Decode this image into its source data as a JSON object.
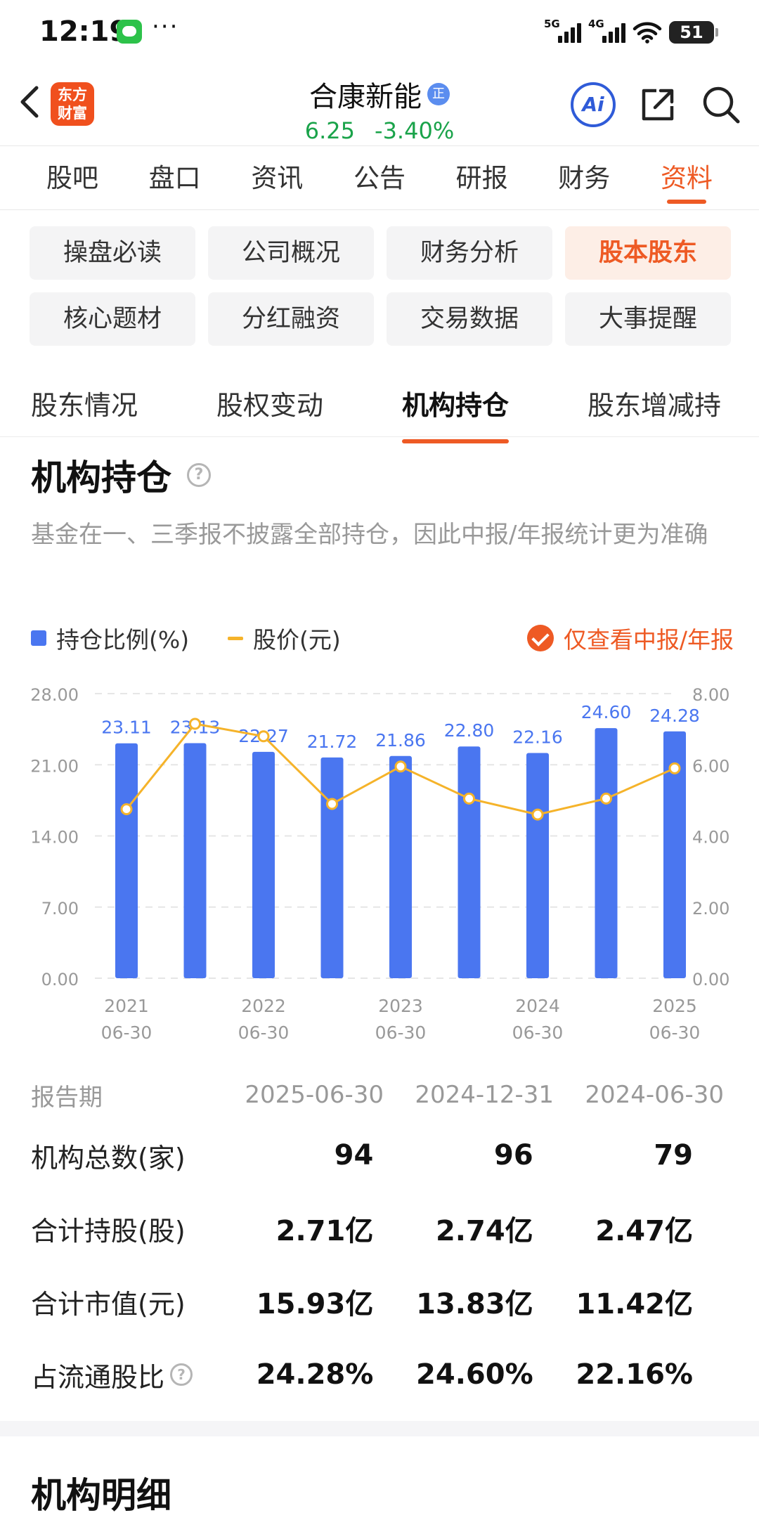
{
  "status_bar": {
    "time": "12:19",
    "dots": "···",
    "net1": "5G",
    "net2": "4G",
    "battery": "51"
  },
  "header": {
    "logo_line1": "东方",
    "logo_line2": "财富",
    "stock_name": "合康新能",
    "badge": "正",
    "price": "6.25",
    "change": "-3.40%",
    "ai_label": "Ai"
  },
  "main_tabs": [
    "股吧",
    "盘口",
    "资讯",
    "公告",
    "研报",
    "财务",
    "资料"
  ],
  "chips": [
    "操盘必读",
    "公司概况",
    "财务分析",
    "股本股东",
    "核心题材",
    "分红融资",
    "交易数据",
    "大事提醒"
  ],
  "sub_tabs": [
    "股东情况",
    "股权变动",
    "机构持仓",
    "股东增减持"
  ],
  "section": {
    "title": "机构持仓",
    "help": "?",
    "desc": "基金在一、三季报不披露全部持仓，因此中报/年报统计更为准确"
  },
  "legend": {
    "bar": "持仓比例(%)",
    "line": "股价(元)",
    "filter": "仅查看中报/年报"
  },
  "colors": {
    "accent": "#ee5a24",
    "bar": "#4a76f0",
    "line": "#f5b32a",
    "up_green": "#1aa34a"
  },
  "chart_data": {
    "type": "bar",
    "x_labels": [
      [
        "2021",
        "06-30"
      ],
      [
        "2022",
        "06-30"
      ],
      [
        "2023",
        "06-30"
      ],
      [
        "2024",
        "06-30"
      ],
      [
        "2025",
        "06-30"
      ]
    ],
    "label_positions": [
      0,
      2,
      4,
      6,
      8
    ],
    "categories": [
      "2021-06-30",
      "2021-12-31",
      "2022-06-30",
      "2022-12-31",
      "2023-06-30",
      "2023-12-31",
      "2024-06-30",
      "2024-12-31",
      "2025-06-30"
    ],
    "series": [
      {
        "name": "持仓比例(%)",
        "type": "bar",
        "values": [
          23.11,
          23.13,
          22.27,
          21.72,
          21.86,
          22.8,
          22.16,
          24.6,
          24.28
        ]
      },
      {
        "name": "股价(元)",
        "type": "line",
        "values": [
          4.75,
          7.15,
          6.8,
          4.9,
          5.95,
          5.05,
          4.6,
          5.05,
          5.9
        ]
      }
    ],
    "y_left": {
      "ticks": [
        "28.00",
        "21.00",
        "14.00",
        "7.00",
        "0.00"
      ],
      "range": [
        0,
        28
      ]
    },
    "y_right": {
      "ticks": [
        "8.00",
        "6.00",
        "4.00",
        "2.00",
        "0.00"
      ],
      "range": [
        0,
        8
      ]
    },
    "grid": true
  },
  "table": {
    "header": [
      "报告期",
      "2025-06-30",
      "2024-12-31",
      "2024-06-30"
    ],
    "rows": [
      {
        "label": "机构总数(家)",
        "values": [
          "94",
          "96",
          "79"
        ]
      },
      {
        "label": "合计持股(股)",
        "values": [
          "2.71亿",
          "2.74亿",
          "2.47亿"
        ]
      },
      {
        "label": "合计市值(元)",
        "values": [
          "15.93亿",
          "13.83亿",
          "11.42亿"
        ]
      },
      {
        "label": "占流通股比",
        "values": [
          "24.28%",
          "24.60%",
          "22.16%"
        ]
      }
    ]
  },
  "detail_title": "机构明细"
}
